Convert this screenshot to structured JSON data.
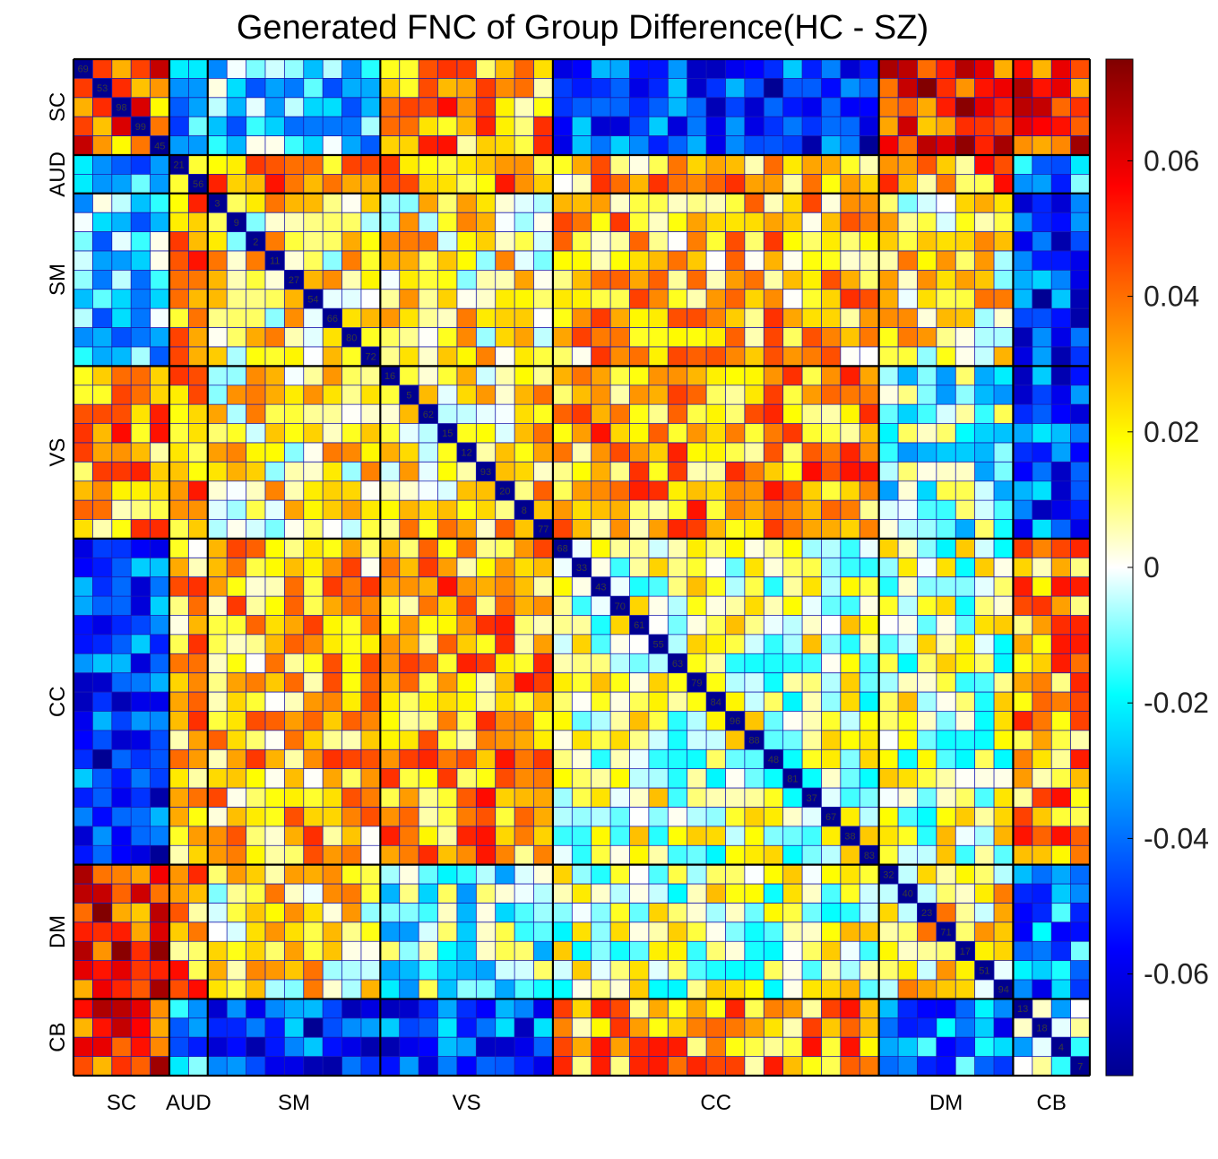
{
  "chart_data": {
    "type": "heatmap",
    "title": "Generated FNC of Group Difference(HC - SZ)",
    "size": 53,
    "domains": [
      {
        "name": "SC",
        "start": 0,
        "end": 5
      },
      {
        "name": "AUD",
        "start": 5,
        "end": 7
      },
      {
        "name": "SM",
        "start": 7,
        "end": 16
      },
      {
        "name": "VS",
        "start": 16,
        "end": 25
      },
      {
        "name": "CC",
        "start": 25,
        "end": 42
      },
      {
        "name": "DM",
        "start": 42,
        "end": 49
      },
      {
        "name": "CB",
        "start": 49,
        "end": 53
      }
    ],
    "diagonal_labels": [
      "69",
      "53",
      "98",
      "99",
      "45",
      "21",
      "56",
      "3",
      "9",
      "2",
      "11",
      "27",
      "54",
      "66",
      "80",
      "72",
      "16",
      "5",
      "62",
      "15",
      "12",
      "93",
      "20",
      "8",
      "77",
      "68",
      "33",
      "43",
      "70",
      "61",
      "55",
      "63",
      "79",
      "84",
      "96",
      "88",
      "48",
      "81",
      "37",
      "67",
      "38",
      "83",
      "32",
      "40",
      "23",
      "71",
      "17",
      "51",
      "94",
      "13",
      "18",
      "4",
      "7"
    ],
    "colorbar": {
      "min": -0.075,
      "max": 0.075,
      "ticks": [
        -0.06,
        -0.04,
        -0.02,
        0,
        0.02,
        0.04,
        0.06
      ],
      "tick_labels": [
        "-0.06",
        "-0.04",
        "-0.02",
        "0",
        "0.02",
        "0.04",
        "0.06"
      ]
    },
    "colormap": "jet",
    "block_values": [
      [
        0.04,
        -0.03,
        -0.02,
        0.03,
        -0.05,
        0.05,
        0.05
      ],
      [
        -0.03,
        0.0,
        0.03,
        0.035,
        0.025,
        0.03,
        -0.03
      ],
      [
        -0.02,
        0.03,
        0.015,
        0.015,
        0.025,
        0.015,
        -0.05
      ],
      [
        0.03,
        0.035,
        0.015,
        0.02,
        0.03,
        -0.01,
        -0.045
      ],
      [
        -0.05,
        0.025,
        0.025,
        0.03,
        0.005,
        0.005,
        0.03
      ],
      [
        0.05,
        0.03,
        0.015,
        -0.01,
        0.005,
        0.015,
        -0.035
      ],
      [
        0.05,
        -0.03,
        -0.05,
        -0.045,
        0.03,
        -0.035,
        -0.01
      ]
    ]
  }
}
